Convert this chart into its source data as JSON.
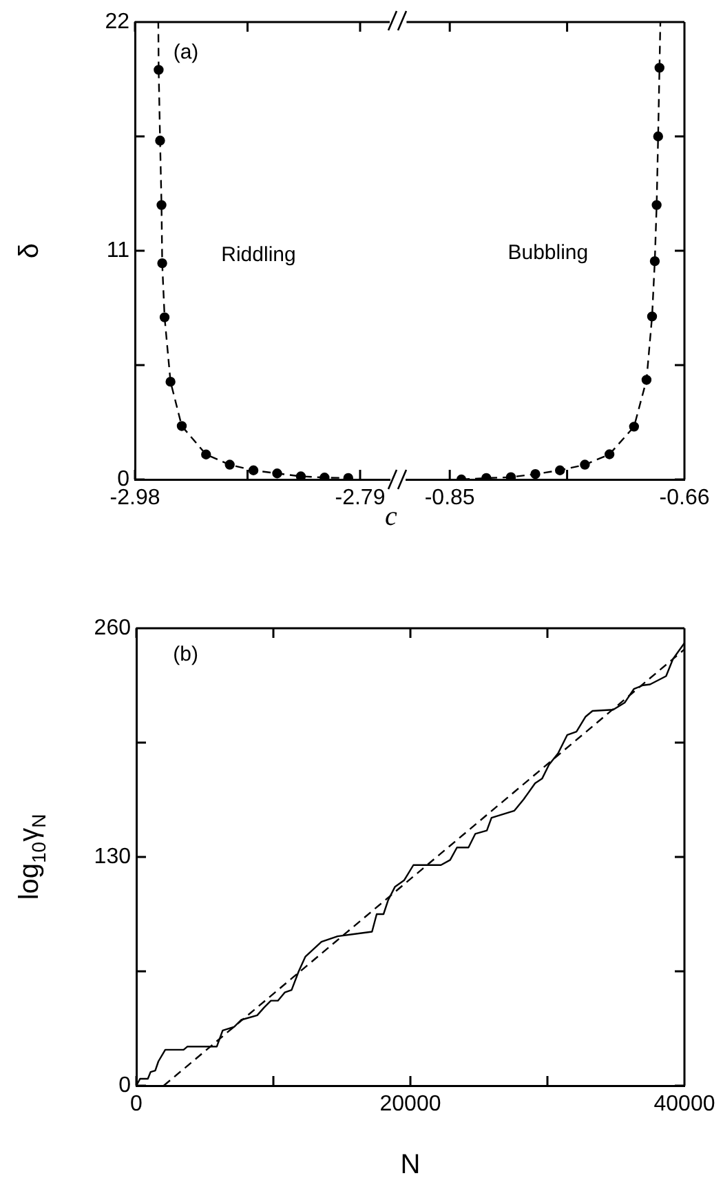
{
  "chart_data": [
    {
      "type": "line",
      "ylabel": "δ",
      "xlabel": "c",
      "xlim": [
        -2.98,
        -2.765
      ],
      "xticks": [
        -2.98,
        {
          "value": -2.885,
          "label": null
        },
        -2.79
      ],
      "ylim": [
        0,
        22
      ],
      "yticks": [
        0,
        {
          "value": 5.5,
          "label": null
        },
        11,
        {
          "value": 16.5,
          "label": null
        },
        22
      ],
      "grid": false,
      "legend": false,
      "line_style": "dashed",
      "series": [
        {
          "color": "#000000",
          "marker": "circle",
          "x": [
            -2.96,
            -2.9588,
            -2.9576,
            -2.957,
            -2.955,
            -2.95,
            -2.9405,
            -2.92,
            -2.9,
            -2.88,
            -2.86,
            -2.84,
            -2.82,
            -2.8
          ],
          "values": [
            19.7,
            16.3,
            13.2,
            10.4,
            7.8,
            4.7,
            2.57,
            1.2,
            0.71,
            0.44,
            0.29,
            0.15,
            0.09,
            0.07
          ]
        },
        {
          "color": "#000000",
          "marker": "none",
          "x": [
            -2.96,
            -2.9603
          ],
          "values": [
            19.7,
            22
          ]
        }
      ],
      "annotations": [
        "(a)",
        "Riddling"
      ]
    },
    {
      "type": "line",
      "xlim": [
        -0.885,
        -0.66
      ],
      "xticks": [
        -0.85,
        {
          "value": -0.755,
          "label": null
        },
        -0.66
      ],
      "ylim": [
        0,
        22
      ],
      "yticks": [
        0,
        {
          "value": 5.5,
          "label": null
        },
        11,
        {
          "value": 16.5,
          "label": null
        },
        22
      ],
      "tick_labels": "x",
      "grid": false,
      "legend": false,
      "line_style": "dashed",
      "series": [
        {
          "color": "#000000",
          "marker": "circle",
          "x": [
            -0.8406,
            -0.8204,
            -0.8005,
            -0.7807,
            -0.7608,
            -0.7406,
            -0.7207,
            -0.7008,
            -0.6907,
            -0.6862,
            -0.684,
            -0.6825,
            -0.6813,
            -0.6802
          ],
          "values": [
            0,
            0.07,
            0.11,
            0.26,
            0.44,
            0.71,
            1.21,
            2.54,
            4.79,
            7.84,
            10.5,
            13.2,
            16.5,
            19.8
          ]
        },
        {
          "color": "#000000",
          "marker": "none",
          "x": [
            -0.6802,
            -0.6795
          ],
          "values": [
            19.8,
            22
          ]
        }
      ],
      "annotations": [
        "Bubbling"
      ]
    },
    {
      "type": "line",
      "xlabel": "N",
      "ylabel": "log$_{10}$γ$_{N}$",
      "xlim": [
        0,
        40000
      ],
      "xticks": [
        0,
        {
          "value": 10000,
          "label": null
        },
        20000,
        {
          "value": 30000,
          "label": null
        },
        40000
      ],
      "ylim": [
        0,
        260
      ],
      "yticks": [
        0,
        {
          "value": 65,
          "label": null
        },
        130,
        {
          "value": 195,
          "label": null
        },
        260
      ],
      "grid": false,
      "legend": false,
      "series": [
        {
          "color": "#000000",
          "marker": "none",
          "line_style": "solid",
          "x": [
            0,
            270,
            840,
            1040,
            1380,
            1610,
            2110,
            3450,
            3720,
            5870,
            6300,
            7140,
            7650,
            8820,
            9320,
            9820,
            10330,
            10830,
            11330,
            11840,
            12340,
            13510,
            14690,
            17200,
            17540,
            18040,
            18370,
            18880,
            19550,
            20220,
            22230,
            22900,
            23400,
            24240,
            24740,
            25580,
            25920,
            27260,
            27590,
            28270,
            29100,
            29610,
            30110,
            30780,
            31450,
            32120,
            32790,
            33290,
            34800,
            35640,
            36310,
            36980,
            37490,
            38660,
            39160,
            40000
          ],
          "values": [
            0,
            3.9,
            3.9,
            7.8,
            8.6,
            13.8,
            20.4,
            20.4,
            22.2,
            22.2,
            31.4,
            33.4,
            37.4,
            40,
            44.4,
            48.3,
            48.3,
            53,
            54.4,
            64.8,
            73.4,
            81.8,
            84.9,
            87.5,
            97.5,
            97.5,
            105.3,
            113.1,
            116.8,
            125.4,
            125.4,
            128.3,
            135.4,
            135.4,
            143.2,
            145,
            152.3,
            155.5,
            156.3,
            162.8,
            171.9,
            174.5,
            182.4,
            188.9,
            199.4,
            201.2,
            209.8,
            213,
            213.7,
            217.7,
            225.5,
            227.6,
            228.1,
            232.8,
            242.5,
            251.6
          ]
        },
        {
          "color": "#000000",
          "marker": "none",
          "line_style": "dashed",
          "x": [
            2000,
            40000
          ],
          "values": [
            0,
            248
          ]
        }
      ],
      "annotations": [
        "(b)"
      ]
    }
  ]
}
